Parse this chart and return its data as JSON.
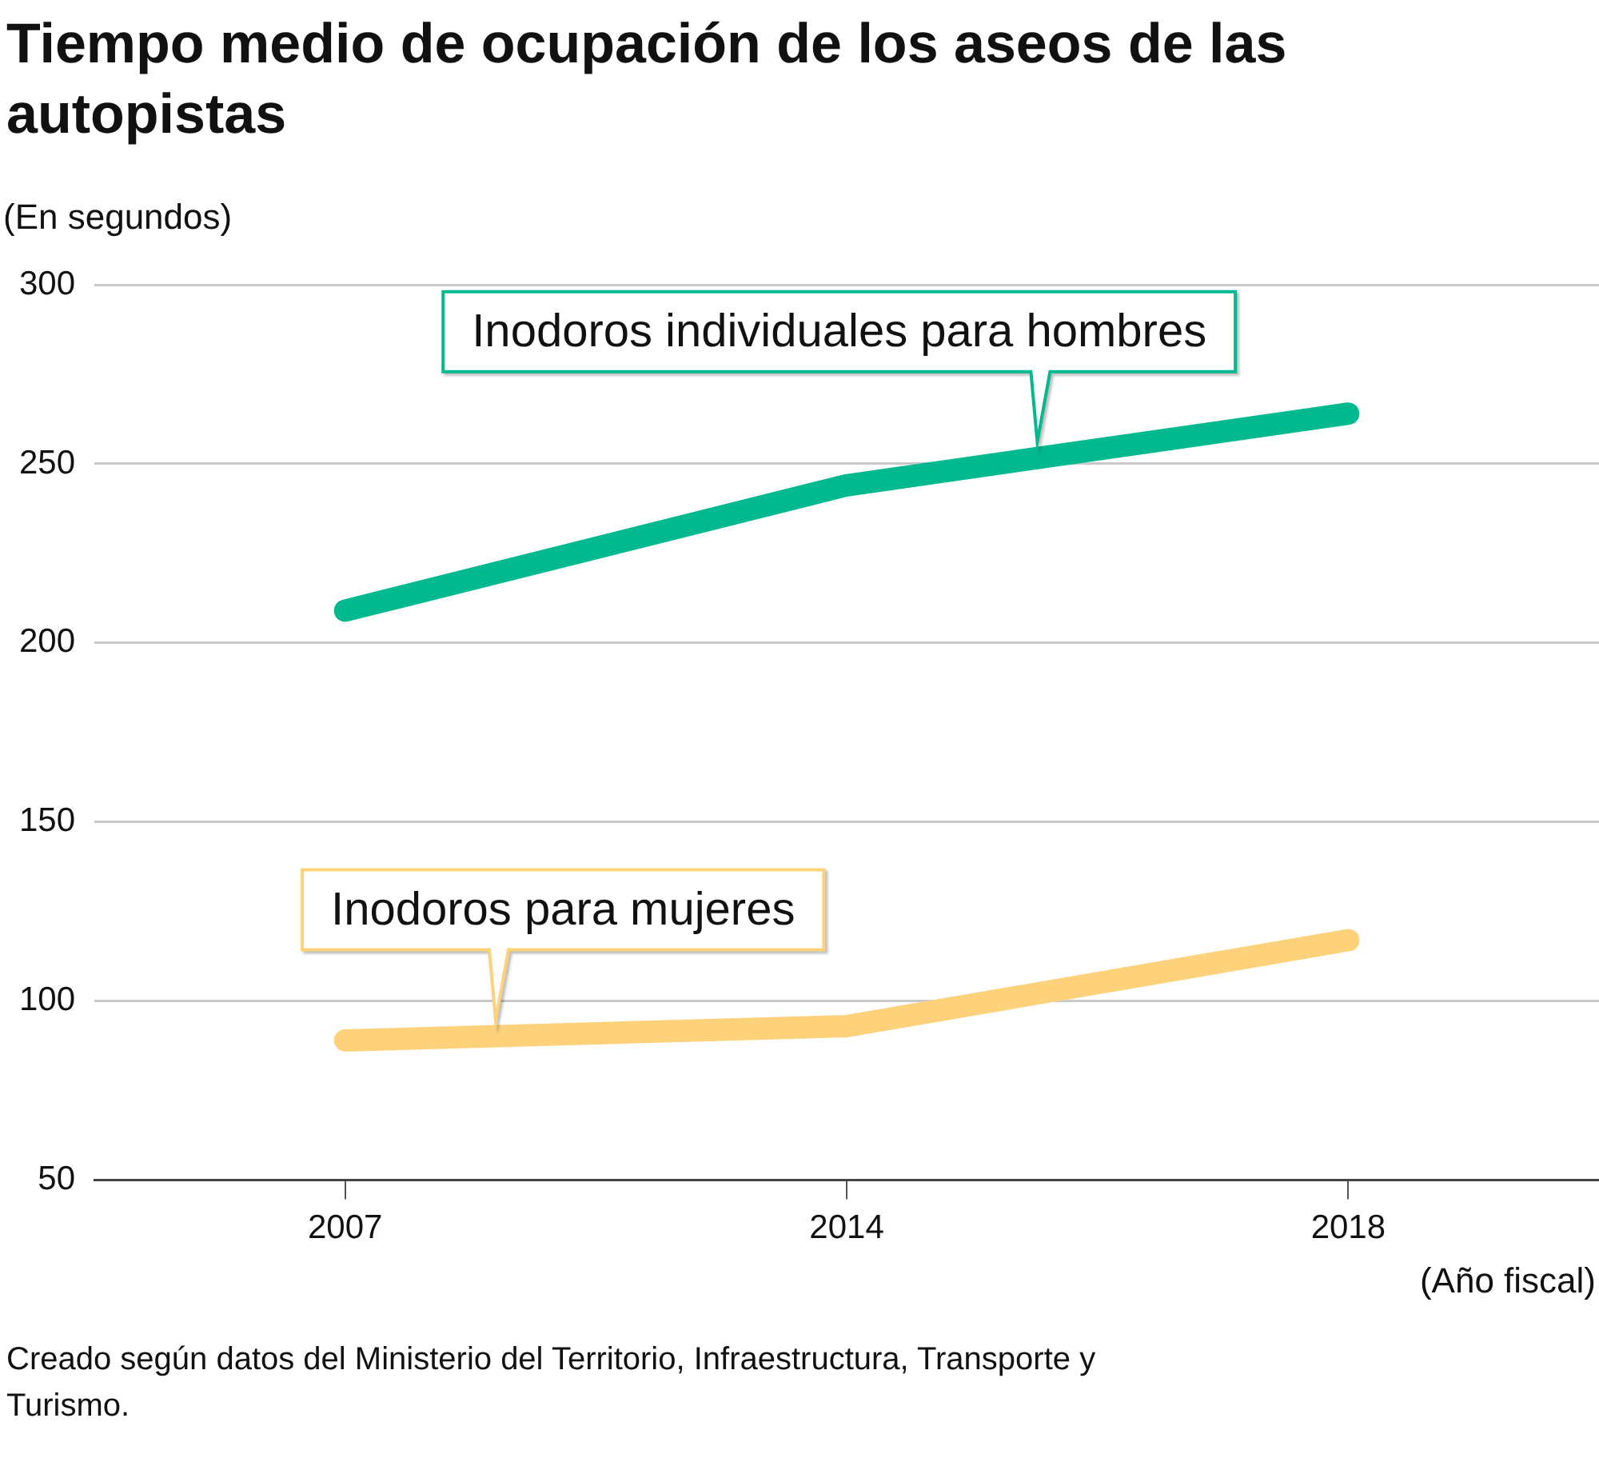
{
  "chart_data": {
    "type": "line",
    "title": "Tiempo medio de ocupación de los aseos de las autopistas",
    "ylabel": "(En segundos)",
    "xlabel": "(Año fiscal)",
    "categories": [
      "2007",
      "2014",
      "2018"
    ],
    "series": [
      {
        "name": "Inodoros individuales para hombres",
        "color": "#00b98e",
        "values": [
          209,
          244,
          264
        ]
      },
      {
        "name": "Inodoros para mujeres",
        "color": "#fdd27a",
        "values": [
          89,
          93,
          117
        ]
      }
    ],
    "ylim": [
      50,
      300
    ],
    "yticks": [
      50,
      100,
      150,
      200,
      250,
      300
    ],
    "grid": "y",
    "marker": "none",
    "annotations": [
      "Creado según datos del Ministerio del Territorio, Infraestructura, Transporte y Turismo."
    ]
  }
}
